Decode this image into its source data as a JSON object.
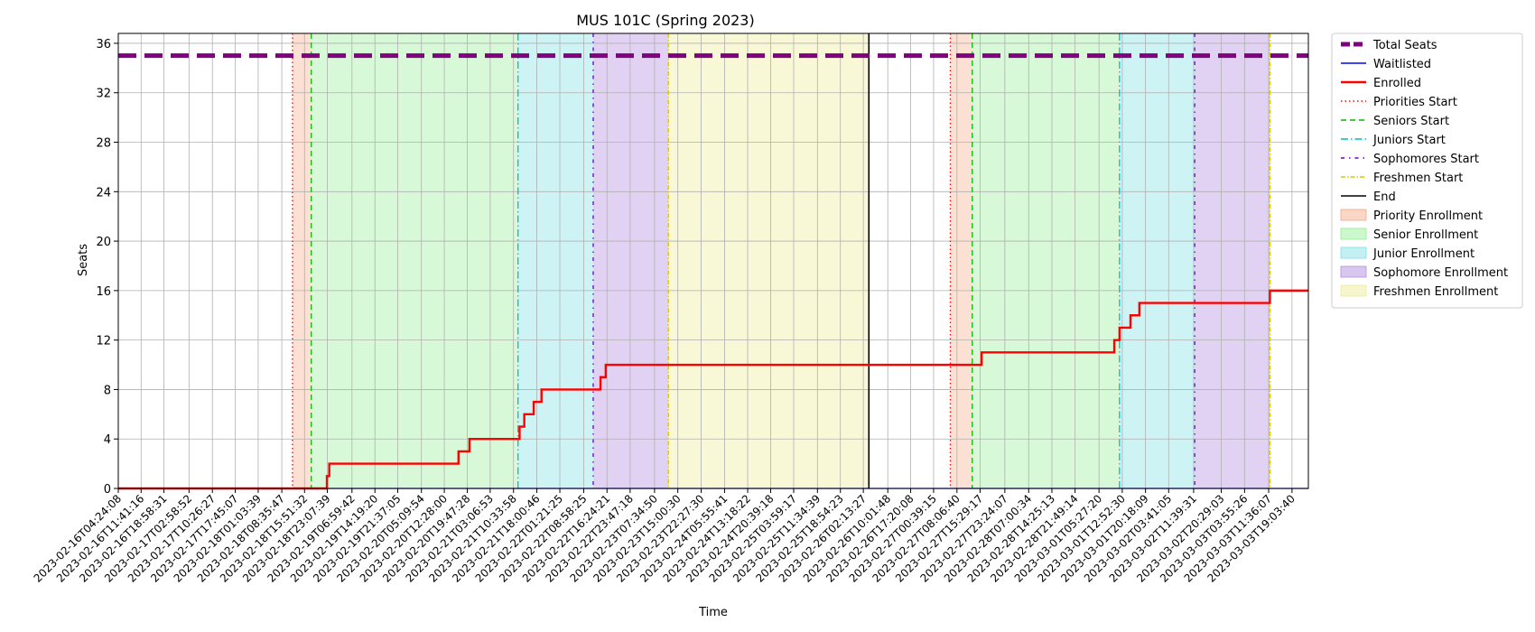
{
  "chart_data": {
    "type": "line",
    "title": "MUS 101C (Spring 2023)",
    "xlabel": "Time",
    "ylabel": "Seats",
    "ylim": [
      0,
      36.8
    ],
    "yticks": [
      0,
      4,
      8,
      12,
      16,
      20,
      24,
      28,
      32,
      36
    ],
    "xlim": [
      "2023-02-16T04:24:08",
      "2023-03-04T00:17:00"
    ],
    "grid": true,
    "legend_position": "outside-right",
    "xtick_labels": [
      "2023-02-16T04:24:08",
      "2023-02-16T11:41:16",
      "2023-02-16T18:58:31",
      "2023-02-17T02:58:52",
      "2023-02-17T10:26:27",
      "2023-02-17T17:45:07",
      "2023-02-18T01:03:39",
      "2023-02-18T08:35:47",
      "2023-02-18T15:51:32",
      "2023-02-18T23:07:39",
      "2023-02-19T06:59:42",
      "2023-02-19T14:19:20",
      "2023-02-19T21:37:05",
      "2023-02-20T05:09:54",
      "2023-02-20T12:28:00",
      "2023-02-20T19:47:28",
      "2023-02-21T03:06:53",
      "2023-02-21T10:33:58",
      "2023-02-21T18:00:46",
      "2023-02-22T01:21:25",
      "2023-02-22T08:58:25",
      "2023-02-22T16:24:21",
      "2023-02-22T23:47:18",
      "2023-02-23T07:34:50",
      "2023-02-23T15:00:30",
      "2023-02-23T22:27:30",
      "2023-02-24T05:55:41",
      "2023-02-24T13:18:22",
      "2023-02-24T20:39:18",
      "2023-02-25T03:59:17",
      "2023-02-25T11:34:39",
      "2023-02-25T18:54:23",
      "2023-02-26T02:13:27",
      "2023-02-26T10:01:48",
      "2023-02-26T17:20:08",
      "2023-02-27T00:39:15",
      "2023-02-27T08:06:40",
      "2023-02-27T15:29:17",
      "2023-02-27T23:24:07",
      "2023-02-28T07:00:34",
      "2023-02-28T14:25:13",
      "2023-02-28T21:49:14",
      "2023-03-01T05:27:20",
      "2023-03-01T12:52:30",
      "2023-03-01T20:18:09",
      "2023-03-02T03:41:05",
      "2023-03-02T11:39:31",
      "2023-03-02T20:29:03",
      "2023-03-03T03:55:26",
      "2023-03-03T11:36:07",
      "2023-03-03T19:03:40"
    ],
    "series": [
      {
        "name": "Total Seats",
        "color": "#800080",
        "style": "dashed-thick",
        "x": [
          "2023-02-16T04:24:08",
          "2023-03-04T00:17:00"
        ],
        "y": [
          35,
          35
        ]
      },
      {
        "name": "Waitlisted",
        "color": "#0000ff",
        "style": "solid-thin",
        "x": [
          "2023-02-16T04:24:08",
          "2023-03-04T00:17:00"
        ],
        "y": [
          0,
          0
        ]
      },
      {
        "name": "Enrolled",
        "color": "#ff0000",
        "style": "step",
        "x": [
          "2023-02-16T04:24:08",
          "2023-02-18T23:00:00",
          "2023-02-18T23:45:00",
          "2023-02-20T17:00:00",
          "2023-02-20T20:30:00",
          "2023-02-21T12:30:00",
          "2023-02-21T14:00:00",
          "2023-02-21T17:00:00",
          "2023-02-21T19:30:00",
          "2023-02-22T14:20:00",
          "2023-02-22T16:00:00",
          "2023-02-27T16:00:00",
          "2023-03-01T10:20:00",
          "2023-03-01T12:00:00",
          "2023-03-01T15:30:00",
          "2023-03-01T18:20:00",
          "2023-03-03T12:00:00"
        ],
        "y": [
          0,
          1,
          2,
          3,
          4,
          5,
          6,
          7,
          8,
          9,
          10,
          11,
          12,
          13,
          14,
          15,
          16
        ]
      }
    ],
    "period_lines": [
      {
        "name": "Priorities Start",
        "color": "#ff0000",
        "style": "dotted",
        "dash": "1.5,3",
        "x": [
          "2023-02-18T12:00:00",
          "2023-02-27T06:00:00"
        ]
      },
      {
        "name": "Seniors Start",
        "color": "#00bb00",
        "style": "dashed",
        "dash": "6,4",
        "x": [
          "2023-02-18T18:00:00",
          "2023-02-27T13:00:00"
        ]
      },
      {
        "name": "Juniors Start",
        "color": "#00bfbf",
        "style": "dashdot",
        "dash": "8,3,1.5,3",
        "x": [
          "2023-02-21T12:00:00",
          "2023-03-01T12:00:00"
        ]
      },
      {
        "name": "Sophomores Start",
        "color": "#6600cc",
        "style": "dashdot-sparse",
        "dash": "4,5,1.5,5",
        "x": [
          "2023-02-22T12:00:00",
          "2023-03-02T12:00:00"
        ]
      },
      {
        "name": "Freshmen Start",
        "color": "#d8c800",
        "style": "dashdot",
        "dash": "5,2,1.5,2",
        "x": [
          "2023-02-23T12:00:00",
          "2023-03-03T12:00:00"
        ]
      },
      {
        "name": "End",
        "color": "#000000",
        "style": "solid",
        "dash": "",
        "x": [
          "2023-02-26T04:00:00"
        ]
      }
    ],
    "periods": [
      {
        "name": "Priority Enrollment",
        "color": "#f4a582",
        "opacity": 0.35,
        "ranges": [
          [
            "2023-02-18T12:00:00",
            "2023-02-18T18:00:00"
          ],
          [
            "2023-02-27T06:00:00",
            "2023-02-27T13:00:00"
          ]
        ]
      },
      {
        "name": "Senior Enrollment",
        "color": "#90ee90",
        "opacity": 0.35,
        "ranges": [
          [
            "2023-02-18T18:00:00",
            "2023-02-21T12:00:00"
          ],
          [
            "2023-02-27T13:00:00",
            "2023-03-01T12:00:00"
          ]
        ]
      },
      {
        "name": "Junior Enrollment",
        "color": "#7fdfe6",
        "opacity": 0.38,
        "ranges": [
          [
            "2023-02-21T12:00:00",
            "2023-02-22T12:00:00"
          ],
          [
            "2023-03-01T12:00:00",
            "2023-03-02T12:00:00"
          ]
        ]
      },
      {
        "name": "Sophomore Enrollment",
        "color": "#b38ee0",
        "opacity": 0.4,
        "ranges": [
          [
            "2023-02-22T12:00:00",
            "2023-02-23T12:00:00"
          ],
          [
            "2023-03-02T12:00:00",
            "2023-03-03T12:00:00"
          ]
        ]
      },
      {
        "name": "Freshmen Enrollment",
        "color": "#eeee99",
        "opacity": 0.4,
        "ranges": [
          [
            "2023-02-23T12:00:00",
            "2023-02-26T04:00:00"
          ]
        ]
      }
    ]
  }
}
